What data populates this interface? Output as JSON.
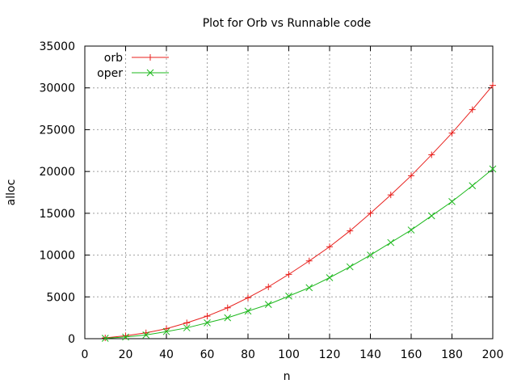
{
  "chart_data": {
    "type": "line",
    "title": "Plot for Orb vs Runnable code",
    "xlabel": "n",
    "ylabel": "alloc",
    "xlim": [
      0,
      200
    ],
    "ylim": [
      0,
      35000
    ],
    "x_ticks": [
      "0",
      "20",
      "40",
      "60",
      "80",
      "100",
      "120",
      "140",
      "160",
      "180",
      "200"
    ],
    "y_ticks": [
      "0",
      "5000",
      "10000",
      "15000",
      "20000",
      "25000",
      "30000",
      "35000"
    ],
    "grid": true,
    "legend_position": "top-left",
    "x": [
      10,
      20,
      30,
      40,
      50,
      60,
      70,
      80,
      90,
      100,
      110,
      120,
      130,
      140,
      150,
      160,
      170,
      180,
      190,
      200
    ],
    "series": [
      {
        "name": "orb",
        "color": "#e8201d",
        "marker": "plus",
        "values": [
          100,
          350,
          700,
          1200,
          1900,
          2700,
          3700,
          4900,
          6200,
          7700,
          9300,
          11000,
          12900,
          15000,
          17200,
          19500,
          22000,
          24600,
          27400,
          30300
        ]
      },
      {
        "name": "oper",
        "color": "#1db81d",
        "marker": "cross",
        "values": [
          50,
          200,
          450,
          850,
          1300,
          1900,
          2500,
          3300,
          4100,
          5100,
          6100,
          7300,
          8600,
          10000,
          11500,
          13000,
          14700,
          16400,
          18300,
          20300
        ]
      }
    ]
  }
}
